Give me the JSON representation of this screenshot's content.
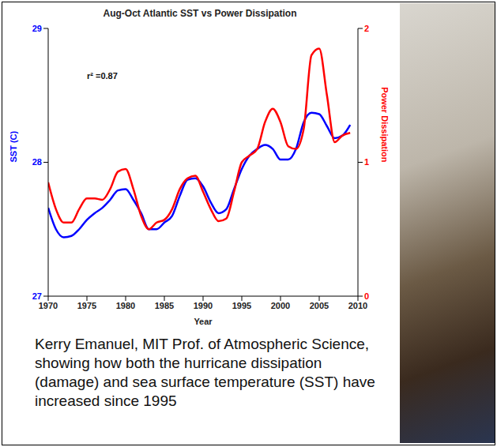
{
  "chart_data": {
    "type": "line",
    "title": "Aug-Oct Atlantic SST vs Power Dissipation",
    "annotation": "r² =0.87",
    "xlabel": "Year",
    "ylabel": "SST (C)",
    "y2label": "Power Dissipation",
    "x": [
      1970,
      1971,
      1972,
      1973,
      1974,
      1975,
      1976,
      1977,
      1978,
      1979,
      1980,
      1981,
      1982,
      1983,
      1984,
      1985,
      1986,
      1987,
      1988,
      1989,
      1990,
      1991,
      1992,
      1993,
      1994,
      1995,
      1996,
      1997,
      1998,
      1999,
      2000,
      2001,
      2002,
      2003,
      2004,
      2005,
      2006,
      2007,
      2008,
      2009
    ],
    "series": [
      {
        "color": "#0000ff",
        "values": [
          27.66,
          27.5,
          27.44,
          27.45,
          27.5,
          27.57,
          27.62,
          27.66,
          27.72,
          27.79,
          27.8,
          27.72,
          27.62,
          27.5,
          27.5,
          27.55,
          27.6,
          27.75,
          27.87,
          27.88,
          27.82,
          27.7,
          27.62,
          27.65,
          27.8,
          27.95,
          28.05,
          28.1,
          28.13,
          28.1,
          28.02,
          28.02,
          28.1,
          28.3,
          28.37,
          28.36,
          28.27,
          28.18,
          28.2,
          28.28
        ]
      },
      {
        "color": "#ff0000",
        "axis": "y2",
        "values": [
          0.85,
          0.65,
          0.55,
          0.55,
          0.65,
          0.73,
          0.73,
          0.72,
          0.8,
          0.93,
          0.95,
          0.8,
          0.6,
          0.5,
          0.55,
          0.57,
          0.65,
          0.8,
          0.88,
          0.9,
          0.78,
          0.65,
          0.56,
          0.58,
          0.78,
          1.0,
          1.05,
          1.1,
          1.3,
          1.4,
          1.3,
          1.12,
          1.1,
          1.25,
          1.8,
          1.85,
          1.5,
          1.15,
          1.2,
          1.22
        ]
      }
    ],
    "xlim": [
      1970,
      2010
    ],
    "xticks": [
      1970,
      1975,
      1980,
      1985,
      1990,
      1995,
      2000,
      2005,
      2010
    ],
    "ylim": [
      27,
      29
    ],
    "yticks": [
      27,
      28,
      29
    ],
    "y2lim": [
      0,
      2
    ],
    "y2ticks": [
      0,
      1,
      2
    ],
    "grid": false
  },
  "caption": "Kerry Emanuel, MIT Prof. of Atmospheric Science, showing how both the hurricane dissipation (damage) and sea surface temperature (SST) have increased since 1995"
}
